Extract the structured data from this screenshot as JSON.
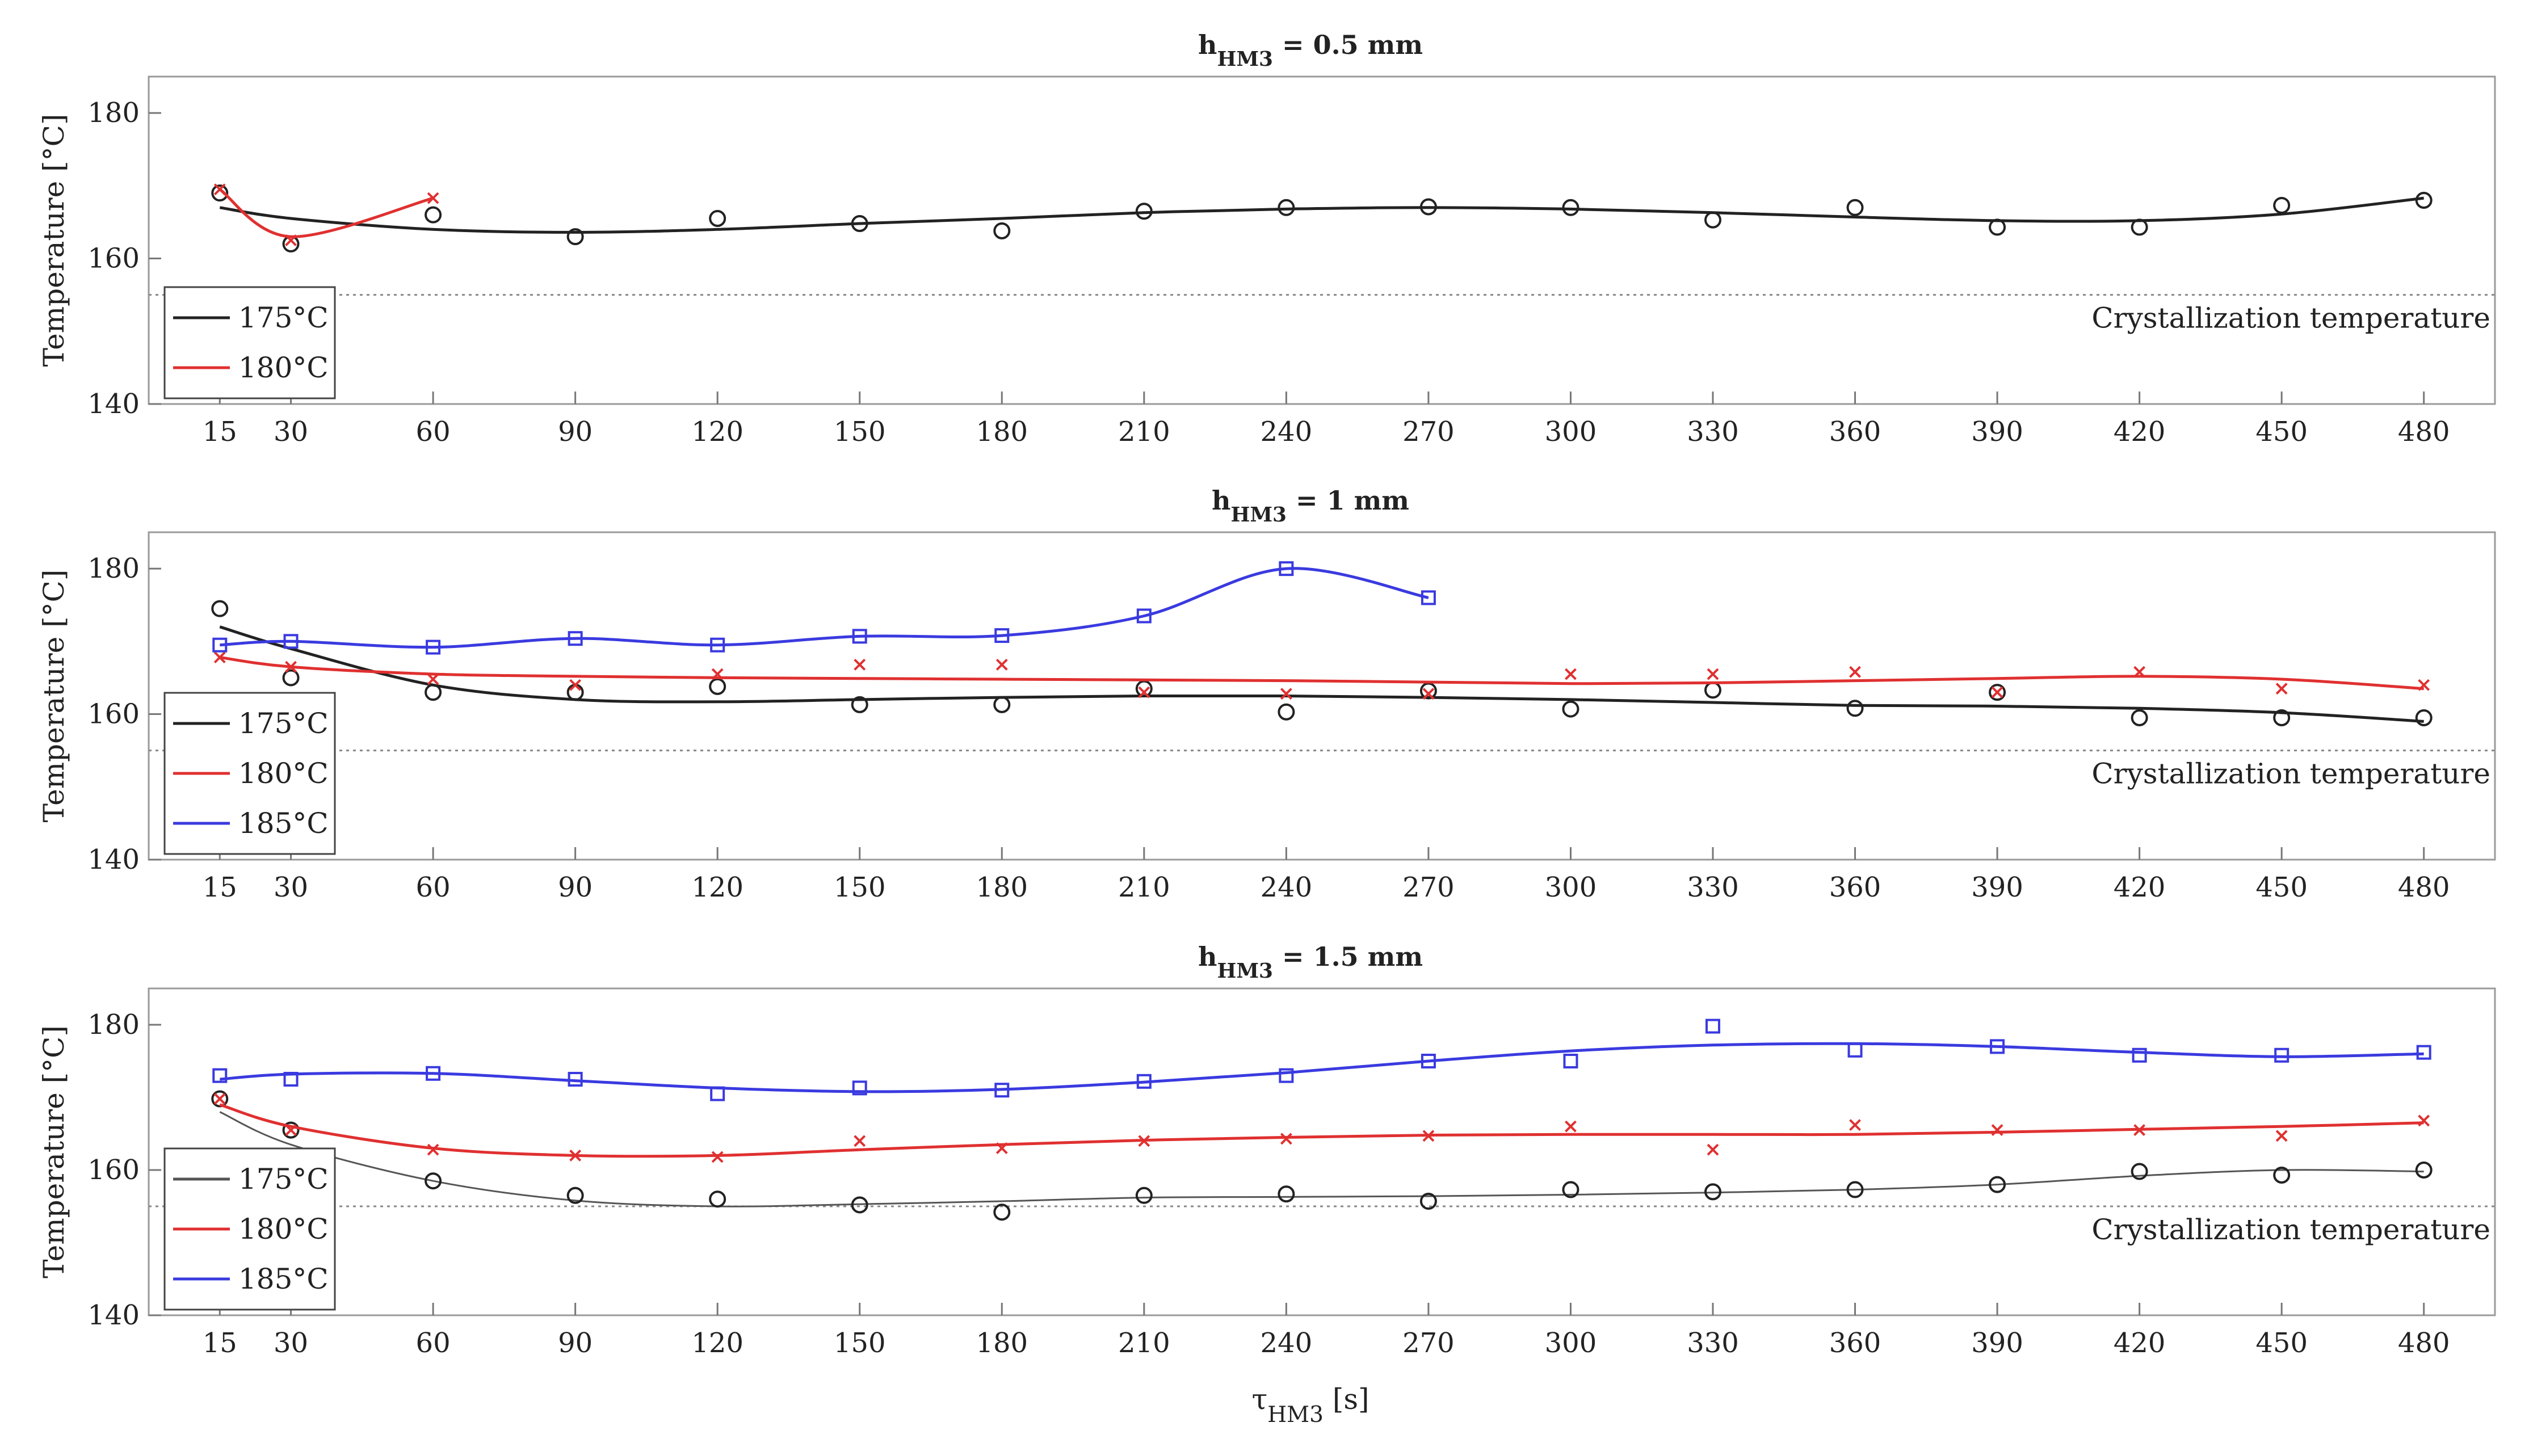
{
  "chart_data": [
    {
      "type": "line",
      "title": {
        "main": "h",
        "sub": "HM3",
        "rest": " = 0.5 mm"
      },
      "ylabel": "Temperature [°C]",
      "ylim": [
        140,
        185
      ],
      "yticks": [
        140,
        160,
        180
      ],
      "x": [
        15,
        30,
        60,
        90,
        120,
        150,
        180,
        210,
        240,
        270,
        300,
        330,
        360,
        390,
        420,
        450,
        480
      ],
      "xtick_labels": [
        "15",
        "30",
        "60",
        "90",
        "120",
        "150",
        "180",
        "210",
        "240",
        "270",
        "300",
        "330",
        "360",
        "390",
        "420",
        "450",
        "480"
      ],
      "reference_line": {
        "value": 155,
        "label": "Crystallization temperature"
      },
      "legend": [
        "175°C",
        "180°C"
      ],
      "series": [
        {
          "name": "175°C",
          "color": "#222222",
          "marker": "circle",
          "x": [
            15,
            30,
            60,
            90,
            120,
            150,
            180,
            210,
            240,
            270,
            300,
            330,
            360,
            390,
            420,
            450,
            480
          ],
          "points": [
            169,
            162,
            166,
            163,
            165.5,
            164.8,
            163.8,
            166.5,
            167,
            167.1,
            167,
            165.3,
            167,
            164.3,
            164.3,
            167.3,
            168
          ],
          "fit": [
            167,
            165.5,
            164,
            163.6,
            164,
            164.8,
            165.5,
            166.3,
            166.8,
            167,
            166.8,
            166.3,
            165.7,
            165.2,
            165.2,
            166.1,
            168.3
          ]
        },
        {
          "name": "180°C",
          "color": "#e03030",
          "marker": "x",
          "x": [
            15,
            30,
            60
          ],
          "points": [
            169.5,
            162.5,
            168.3
          ],
          "fit": [
            169.5,
            163,
            168.3
          ]
        }
      ]
    },
    {
      "type": "line",
      "title": {
        "main": "h",
        "sub": "HM3",
        "rest": " = 1 mm"
      },
      "ylabel": "Temperature [°C]",
      "ylim": [
        140,
        185
      ],
      "yticks": [
        140,
        160,
        180
      ],
      "x": [
        15,
        30,
        60,
        90,
        120,
        150,
        180,
        210,
        240,
        270,
        300,
        330,
        360,
        390,
        420,
        450,
        480
      ],
      "xtick_labels": [
        "15",
        "30",
        "60",
        "90",
        "120",
        "150",
        "180",
        "210",
        "240",
        "270",
        "300",
        "330",
        "360",
        "390",
        "420",
        "450",
        "480"
      ],
      "reference_line": {
        "value": 155,
        "label": "Crystallization temperature"
      },
      "legend": [
        "175°C",
        "180°C",
        "185°C"
      ],
      "series": [
        {
          "name": "175°C",
          "color": "#222222",
          "marker": "circle",
          "x": [
            15,
            30,
            60,
            90,
            120,
            150,
            180,
            210,
            240,
            270,
            300,
            330,
            360,
            390,
            420,
            450,
            480
          ],
          "points": [
            174.5,
            165,
            163,
            163,
            163.8,
            161.3,
            161.3,
            163.5,
            160.3,
            163.2,
            160.7,
            163.3,
            160.8,
            163,
            159.5,
            159.5,
            159.5
          ],
          "fit": [
            172,
            169,
            164,
            162,
            161.7,
            162,
            162.3,
            162.5,
            162.5,
            162.3,
            162,
            161.6,
            161.2,
            161.1,
            160.8,
            160.2,
            159
          ]
        },
        {
          "name": "180°C",
          "color": "#e03030",
          "marker": "x",
          "x": [
            15,
            30,
            60,
            90,
            120,
            150,
            180,
            210,
            240,
            270,
            300,
            330,
            360,
            390,
            420,
            450,
            480
          ],
          "points": [
            167.8,
            166.5,
            164.8,
            164,
            165.5,
            166.8,
            166.8,
            163,
            162.8,
            162.8,
            165.5,
            165.5,
            165.8,
            163,
            165.8,
            163.5,
            164
          ],
          "fit": [
            167.8,
            166.5,
            165.5,
            165.2,
            165,
            164.9,
            164.8,
            164.7,
            164.6,
            164.4,
            164.2,
            164.3,
            164.6,
            164.9,
            165.2,
            164.8,
            163.5
          ]
        },
        {
          "name": "185°C",
          "color": "#3a3ae0",
          "marker": "square",
          "x": [
            15,
            30,
            60,
            90,
            120,
            150,
            180,
            210,
            240,
            270
          ],
          "points": [
            169.5,
            170,
            169.2,
            170.4,
            169.5,
            170.7,
            170.8,
            173.5,
            180,
            176
          ],
          "fit": [
            169.5,
            170,
            169.2,
            170.4,
            169.5,
            170.7,
            170.8,
            173.5,
            180,
            176
          ]
        }
      ]
    },
    {
      "type": "line",
      "title": {
        "main": "h",
        "sub": "HM3",
        "rest": " = 1.5 mm"
      },
      "ylabel": "Temperature [°C]",
      "xlabel": {
        "main": "τ",
        "sub": "HM3",
        "rest": " [s]"
      },
      "ylim": [
        140,
        185
      ],
      "yticks": [
        140,
        160,
        180
      ],
      "x": [
        15,
        30,
        60,
        90,
        120,
        150,
        180,
        210,
        240,
        270,
        300,
        330,
        360,
        390,
        420,
        450,
        480
      ],
      "xtick_labels": [
        "15",
        "30",
        "60",
        "90",
        "120",
        "150",
        "180",
        "210",
        "240",
        "270",
        "300",
        "330",
        "360",
        "390",
        "420",
        "450",
        "480"
      ],
      "reference_line": {
        "value": 155,
        "label": "Crystallization temperature"
      },
      "legend": [
        "175°C",
        "180°C",
        "185°C"
      ],
      "series": [
        {
          "name": "175°C",
          "color": "#555555",
          "marker": "circle",
          "x": [
            15,
            30,
            60,
            90,
            120,
            150,
            180,
            210,
            240,
            270,
            300,
            330,
            360,
            390,
            420,
            450,
            480
          ],
          "points": [
            169.8,
            165.5,
            158.5,
            156.5,
            156,
            155.2,
            154.2,
            156.5,
            156.7,
            155.7,
            157.3,
            157,
            157.3,
            158,
            159.8,
            159.3,
            160
          ],
          "fit": [
            168,
            163.5,
            158.5,
            155.8,
            155,
            155.3,
            155.7,
            156.2,
            156.3,
            156.4,
            156.6,
            156.9,
            157.3,
            158,
            159.2,
            160,
            159.8
          ]
        },
        {
          "name": "180°C",
          "color": "#e03030",
          "marker": "x",
          "x": [
            15,
            30,
            60,
            90,
            120,
            150,
            180,
            210,
            240,
            270,
            300,
            330,
            360,
            390,
            420,
            450,
            480
          ],
          "points": [
            169.8,
            165.5,
            162.8,
            162,
            161.8,
            164,
            163,
            164,
            164.3,
            164.7,
            166,
            162.8,
            166.2,
            165.5,
            165.5,
            164.7,
            166.8
          ],
          "fit": [
            169,
            166,
            163,
            162,
            162,
            162.8,
            163.5,
            164.1,
            164.5,
            164.8,
            164.9,
            164.9,
            164.9,
            165.2,
            165.6,
            166,
            166.5
          ]
        },
        {
          "name": "185°C",
          "color": "#3a3ae0",
          "marker": "square",
          "x": [
            15,
            30,
            60,
            90,
            120,
            150,
            180,
            210,
            240,
            270,
            300,
            330,
            360,
            390,
            420,
            450,
            480
          ],
          "points": [
            173,
            172.5,
            173.3,
            172.5,
            170.5,
            171.3,
            171,
            172.2,
            173,
            175,
            175,
            179.8,
            176.5,
            177,
            175.8,
            175.8,
            176.2
          ],
          "fit": [
            172.5,
            173.2,
            173.3,
            172.3,
            171.3,
            170.8,
            171.1,
            172.1,
            173.4,
            175,
            176.4,
            177.2,
            177.4,
            177,
            176.2,
            175.6,
            176
          ]
        }
      ]
    }
  ]
}
